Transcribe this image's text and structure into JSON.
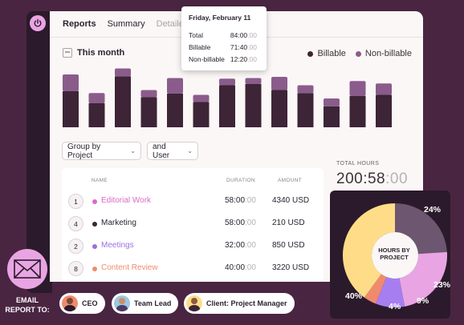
{
  "tabs": [
    {
      "label": "Reports"
    },
    {
      "label": "Summary"
    },
    {
      "label": "Detailed"
    }
  ],
  "range_label": "This month",
  "legend": {
    "billable": {
      "label": "Billable",
      "color": "#3d2436"
    },
    "non_billable": {
      "label": "Non-billable",
      "color": "#8a5c8b"
    }
  },
  "chart_data": {
    "type": "bar",
    "stacked": true,
    "series": [
      {
        "name": "Billable",
        "values": [
          60,
          40,
          85,
          50,
          56,
          42,
          70,
          72,
          62,
          57,
          35,
          52,
          54
        ]
      },
      {
        "name": "Non-billable",
        "values": [
          28,
          17,
          13,
          12,
          26,
          12,
          11,
          10,
          22,
          13,
          13,
          25,
          19
        ]
      }
    ],
    "ylim": [
      0,
      100
    ]
  },
  "tooltip": {
    "title": "Friday, February 11",
    "rows": [
      {
        "label": "Total",
        "value": "84:00",
        "light": ":00"
      },
      {
        "label": "Billable",
        "value": "71:40",
        "light": ":00"
      },
      {
        "label": "Non-billable",
        "value": "12:20",
        "light": ":00"
      }
    ]
  },
  "filters": {
    "group_by": "Group by Project",
    "and_user": "and User"
  },
  "total_hours": {
    "label": "TOTAL HOURS",
    "value": "200:58",
    "light": ":00"
  },
  "table": {
    "headers": {
      "name": "NAME",
      "duration": "DURATION",
      "amount": "AMOUNT"
    },
    "rows": [
      {
        "num": "1",
        "name": "Editorial Work",
        "color": "#d86bc8",
        "duration": "58:00",
        "light": ":00",
        "amount": "4340 USD"
      },
      {
        "num": "4",
        "name": "Marketing",
        "color": "#3d2436",
        "duration": "58:00",
        "light": ":00",
        "amount": "210 USD"
      },
      {
        "num": "2",
        "name": "Meetings",
        "color": "#9b6fe0",
        "duration": "32:00",
        "light": ":00",
        "amount": "850 USD"
      },
      {
        "num": "8",
        "name": "Content Review",
        "color": "#f08a6e",
        "duration": "40:00",
        "light": ":00",
        "amount": "3220 USD"
      }
    ]
  },
  "donut": {
    "center_label": "HOURS BY PROJECT",
    "segments": [
      {
        "value": 24,
        "color": "#6d5670",
        "label": "24%"
      },
      {
        "value": 23,
        "color": "#e9a5e3",
        "label": "23%"
      },
      {
        "value": 9,
        "color": "#a77ef0",
        "label": "9%"
      },
      {
        "value": 4,
        "color": "#f08a6e",
        "label": "4%"
      },
      {
        "value": 40,
        "color": "#ffdd88",
        "label": "40%"
      }
    ]
  },
  "email": {
    "label": "EMAIL REPORT TO:",
    "recipients": [
      {
        "label": "CEO"
      },
      {
        "label": "Team Lead"
      },
      {
        "label": "Client: Project Manager"
      }
    ]
  }
}
